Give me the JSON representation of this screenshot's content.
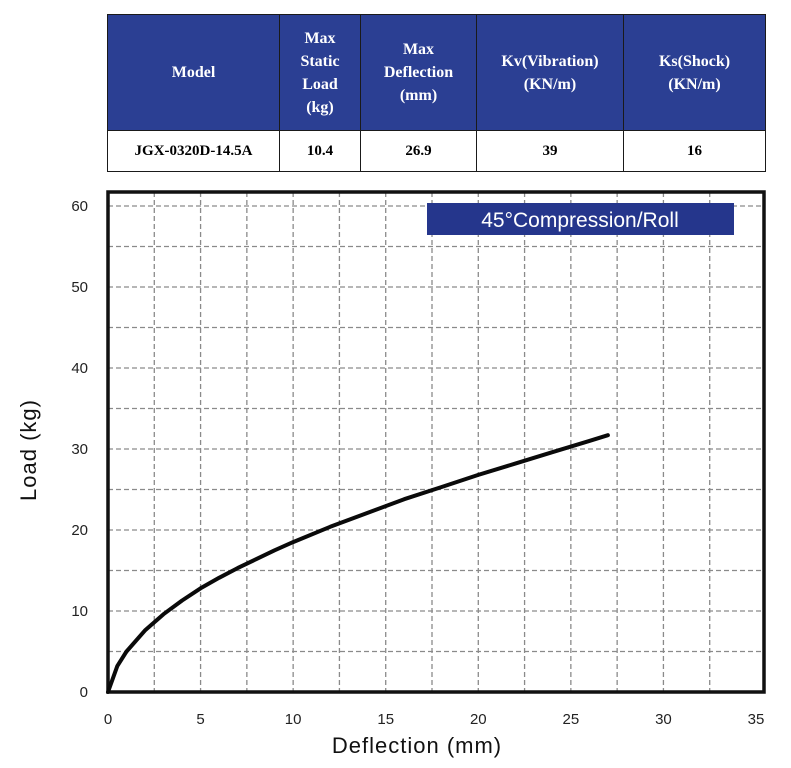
{
  "spec_table": {
    "headers": [
      "Model",
      "Max\nStatic\nLoad\n(kg)",
      "Max\nDeflection\n(mm)",
      "Kv(Vibration)\n(KN/m)",
      "Ks(Shock)\n(KN/m)"
    ],
    "row": [
      "JGX-0320D-14.5A",
      "10.4",
      "26.9",
      "39",
      "16"
    ]
  },
  "colors": {
    "header_bg": "#2b3f93",
    "badge_bg": "#25368c",
    "curve": "#0a0a0a",
    "grid": "#8a8a8a"
  },
  "chart_data": {
    "type": "line",
    "title": "45°Compression/Roll",
    "xlabel": "Deflection (mm)",
    "ylabel": "Load (kg)",
    "xlim": [
      0,
      35
    ],
    "ylim": [
      0,
      60
    ],
    "xticks": [
      0,
      5,
      10,
      15,
      20,
      25,
      30,
      35
    ],
    "yticks": [
      0,
      10,
      20,
      30,
      40,
      50,
      60
    ],
    "grid": true,
    "x": [
      0,
      0.5,
      1,
      2,
      3,
      4,
      5,
      6,
      7,
      8,
      9,
      10,
      12,
      14,
      16,
      18,
      20,
      22,
      24,
      26,
      27
    ],
    "y": [
      0,
      3.2,
      5,
      7.6,
      9.6,
      11.3,
      12.8,
      14.1,
      15.3,
      16.4,
      17.5,
      18.5,
      20.4,
      22.1,
      23.8,
      25.3,
      26.8,
      28.2,
      29.6,
      31,
      31.7
    ]
  }
}
